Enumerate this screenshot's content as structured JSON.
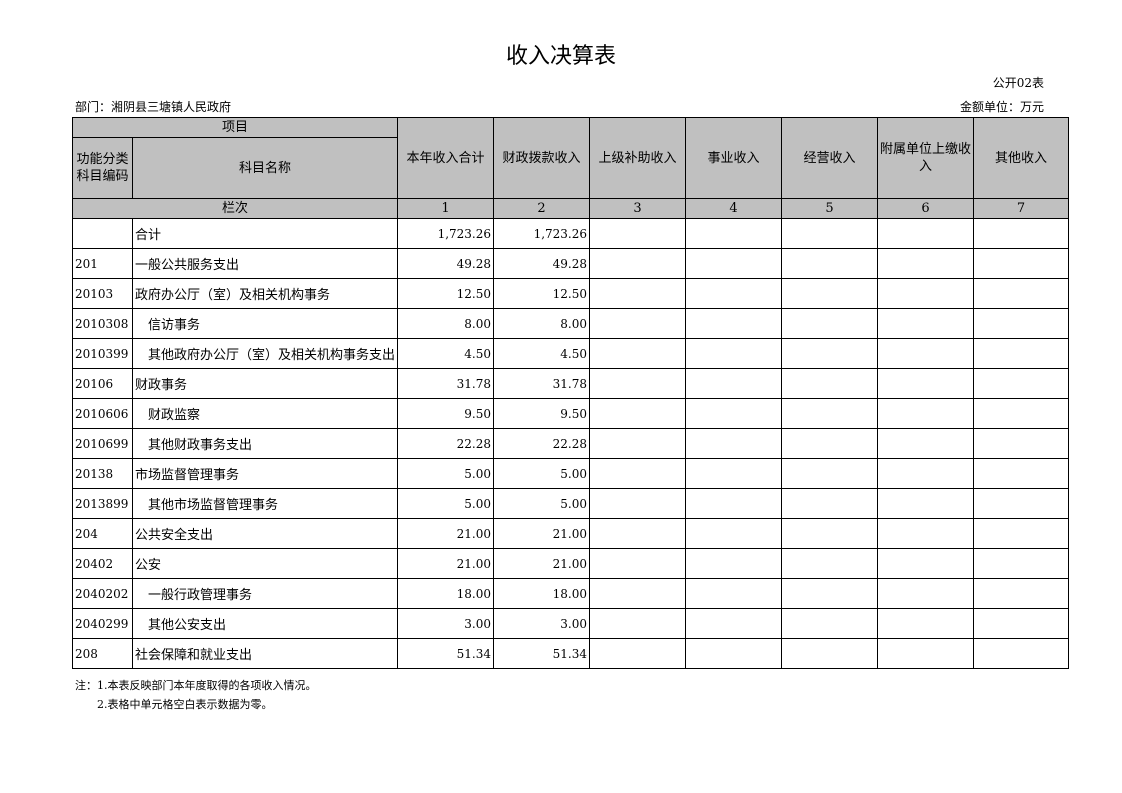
{
  "title": "收入决算表",
  "form_code": "公开02表",
  "department": "部门：湘阴县三塘镇人民政府",
  "unit": "金额单位：万元",
  "header": {
    "item": "项目",
    "code": "功能分类科目编码",
    "name": "科目名称",
    "columns": [
      "本年收入合计",
      "财政拨款收入",
      "上级补助收入",
      "事业收入",
      "经营收入",
      "附属单位上缴收入",
      "其他收入"
    ],
    "seq_label": "栏次",
    "seq": [
      "1",
      "2",
      "3",
      "4",
      "5",
      "6",
      "7"
    ]
  },
  "rows": [
    {
      "code": "",
      "name": "合计",
      "total": "1,723.26",
      "fiscal": "1,723.26"
    },
    {
      "code": "201",
      "name": "一般公共服务支出",
      "total": "49.28",
      "fiscal": "49.28"
    },
    {
      "code": "20103",
      "name": "政府办公厅（室）及相关机构事务",
      "total": "12.50",
      "fiscal": "12.50"
    },
    {
      "code": "2010308",
      "name": "　信访事务",
      "total": "8.00",
      "fiscal": "8.00"
    },
    {
      "code": "2010399",
      "name": "　其他政府办公厅（室）及相关机构事务支出",
      "total": "4.50",
      "fiscal": "4.50"
    },
    {
      "code": "20106",
      "name": "财政事务",
      "total": "31.78",
      "fiscal": "31.78"
    },
    {
      "code": "2010606",
      "name": "　财政监察",
      "total": "9.50",
      "fiscal": "9.50"
    },
    {
      "code": "2010699",
      "name": "　其他财政事务支出",
      "total": "22.28",
      "fiscal": "22.28"
    },
    {
      "code": "20138",
      "name": "市场监督管理事务",
      "total": "5.00",
      "fiscal": "5.00"
    },
    {
      "code": "2013899",
      "name": "　其他市场监督管理事务",
      "total": "5.00",
      "fiscal": "5.00"
    },
    {
      "code": "204",
      "name": "公共安全支出",
      "total": "21.00",
      "fiscal": "21.00"
    },
    {
      "code": "20402",
      "name": "公安",
      "total": "21.00",
      "fiscal": "21.00"
    },
    {
      "code": "2040202",
      "name": "　一般行政管理事务",
      "total": "18.00",
      "fiscal": "18.00"
    },
    {
      "code": "2040299",
      "name": "　其他公安支出",
      "total": "3.00",
      "fiscal": "3.00"
    },
    {
      "code": "208",
      "name": "社会保障和就业支出",
      "total": "51.34",
      "fiscal": "51.34"
    }
  ],
  "notes": [
    "注：1.本表反映部门本年度取得的各项收入情况。",
    "2.表格中单元格空白表示数据为零。"
  ]
}
